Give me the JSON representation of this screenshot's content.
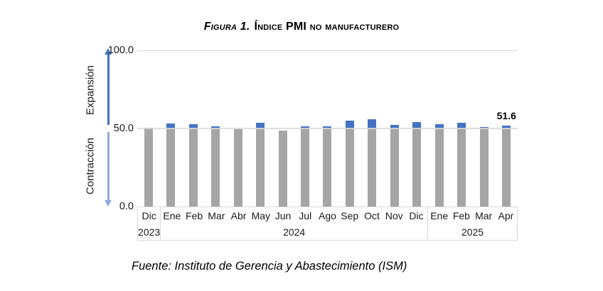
{
  "title": {
    "prefix": "Figura 1.",
    "main": "Índice PMI no manufacturero"
  },
  "footer": {
    "source": "Fuente: Instituto de Gerencia y Abastecimiento (ISM)"
  },
  "axis_annotations": {
    "expansion": "Expansión",
    "contraction": "Contracción"
  },
  "chart_data": {
    "type": "bar",
    "title": "Índice PMI no manufacturero",
    "categories": [
      "Dic",
      "Ene",
      "Feb",
      "Mar",
      "Abr",
      "May",
      "Jun",
      "Jul",
      "Ago",
      "Sep",
      "Oct",
      "Nov",
      "Dic",
      "Ene",
      "Feb",
      "Mar",
      "Apr"
    ],
    "year_groups": [
      {
        "label": "2023",
        "count": 1
      },
      {
        "label": "2024",
        "count": 12
      },
      {
        "label": "2025",
        "count": 4
      }
    ],
    "values": [
      50.6,
      53.4,
      52.6,
      51.4,
      49.4,
      53.8,
      48.8,
      51.4,
      51.5,
      54.9,
      56.0,
      52.1,
      54.1,
      52.8,
      53.5,
      50.8,
      51.6
    ],
    "threshold": 50,
    "ylim": [
      0,
      100
    ],
    "yticks": [
      {
        "label": "100.0",
        "value": 100
      },
      {
        "label": "50.0",
        "value": 50
      },
      {
        "label": "0.0",
        "value": 0
      }
    ],
    "annotation": {
      "label": "51.6",
      "index": 16
    },
    "grid": "horizontal",
    "colors": {
      "bar": "#A5A5A5",
      "cap": "#4472C4",
      "expansion_arrow": "#4472C4",
      "contraction_arrow": "#8FAADC",
      "gridline": "#D9D9D9"
    }
  }
}
